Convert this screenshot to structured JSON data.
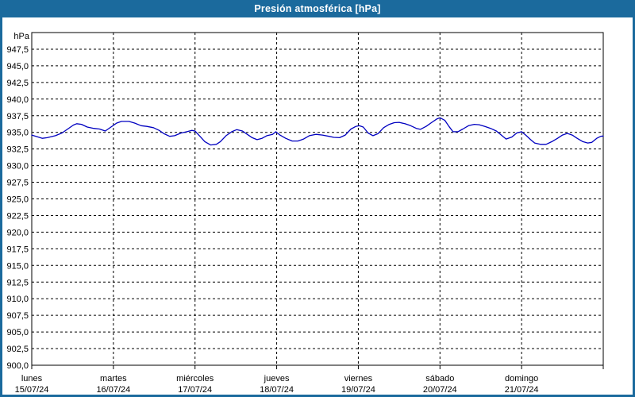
{
  "window": {
    "title": "Presión atmosférica [hPa]"
  },
  "colors": {
    "titlebar_bg": "#1b6a9d",
    "titlebar_text": "#ffffff",
    "frame": "#1b6a9d",
    "plot_bg": "#ffffff",
    "grid": "#000000",
    "axis": "#000000",
    "curve": "#0000c0",
    "label_text": "#000000"
  },
  "chart_data": {
    "type": "line",
    "title": "Presión atmosférica [hPa]",
    "grid": "dashed",
    "legend": "none",
    "y_axis": {
      "unit": "hPa",
      "min": 900.0,
      "max": 950.0,
      "grid_step": 2.5,
      "tick_values": [
        947.5,
        945.0,
        942.5,
        940.0,
        937.5,
        935.0,
        932.5,
        930.0,
        927.5,
        925.0,
        922.5,
        920.0,
        917.5,
        915.0,
        912.5,
        910.0,
        907.5,
        905.0,
        902.5,
        900.0
      ],
      "tick_labels": [
        "947,5",
        "945,0",
        "942,5",
        "940,0",
        "937,5",
        "935,0",
        "932,5",
        "930,0",
        "927,5",
        "925,0",
        "922,5",
        "920,0",
        "917,5",
        "915,0",
        "912,5",
        "910,0",
        "907,5",
        "905,0",
        "902,5",
        "900,0"
      ]
    },
    "x_axis": {
      "day_count": 7,
      "days": [
        {
          "name": "lunes",
          "date": "15/07/24"
        },
        {
          "name": "martes",
          "date": "16/07/24"
        },
        {
          "name": "miércoles",
          "date": "17/07/24"
        },
        {
          "name": "jueves",
          "date": "18/07/24"
        },
        {
          "name": "viernes",
          "date": "19/07/24"
        },
        {
          "name": "sábado",
          "date": "20/07/24"
        },
        {
          "name": "domingo",
          "date": "21/07/24"
        }
      ]
    },
    "series": [
      {
        "name": "presión atmosférica",
        "color": "#0000c0",
        "points": [
          [
            0.0,
            934.6
          ],
          [
            0.08,
            934.3
          ],
          [
            0.13,
            934.1
          ],
          [
            0.19,
            934.2
          ],
          [
            0.29,
            934.5
          ],
          [
            0.37,
            934.9
          ],
          [
            0.44,
            935.5
          ],
          [
            0.51,
            936.1
          ],
          [
            0.55,
            936.3
          ],
          [
            0.61,
            936.2
          ],
          [
            0.68,
            935.8
          ],
          [
            0.76,
            935.6
          ],
          [
            0.83,
            935.5
          ],
          [
            0.9,
            935.2
          ],
          [
            0.97,
            935.8
          ],
          [
            1.04,
            936.4
          ],
          [
            1.1,
            936.65
          ],
          [
            1.19,
            936.65
          ],
          [
            1.26,
            936.4
          ],
          [
            1.34,
            936.0
          ],
          [
            1.41,
            935.9
          ],
          [
            1.49,
            935.7
          ],
          [
            1.56,
            935.3
          ],
          [
            1.62,
            934.8
          ],
          [
            1.69,
            934.4
          ],
          [
            1.75,
            934.5
          ],
          [
            1.83,
            934.9
          ],
          [
            1.9,
            935.1
          ],
          [
            1.96,
            935.3
          ],
          [
            2.0,
            935.2
          ],
          [
            2.06,
            934.4
          ],
          [
            2.12,
            933.6
          ],
          [
            2.19,
            933.1
          ],
          [
            2.26,
            933.2
          ],
          [
            2.31,
            933.6
          ],
          [
            2.38,
            934.5
          ],
          [
            2.45,
            935.1
          ],
          [
            2.51,
            935.4
          ],
          [
            2.58,
            935.2
          ],
          [
            2.64,
            934.7
          ],
          [
            2.7,
            934.2
          ],
          [
            2.76,
            933.9
          ],
          [
            2.82,
            934.1
          ],
          [
            2.88,
            934.5
          ],
          [
            2.95,
            934.7
          ],
          [
            2.99,
            935.1
          ],
          [
            3.04,
            934.6
          ],
          [
            3.11,
            934.1
          ],
          [
            3.19,
            933.7
          ],
          [
            3.26,
            933.7
          ],
          [
            3.33,
            934.0
          ],
          [
            3.4,
            934.5
          ],
          [
            3.48,
            934.7
          ],
          [
            3.56,
            934.6
          ],
          [
            3.64,
            934.4
          ],
          [
            3.7,
            934.25
          ],
          [
            3.77,
            934.2
          ],
          [
            3.84,
            934.6
          ],
          [
            3.91,
            935.5
          ],
          [
            3.97,
            935.9
          ],
          [
            4.01,
            936.0
          ],
          [
            4.06,
            935.8
          ],
          [
            4.12,
            934.9
          ],
          [
            4.18,
            934.5
          ],
          [
            4.24,
            934.8
          ],
          [
            4.31,
            935.7
          ],
          [
            4.38,
            936.2
          ],
          [
            4.44,
            936.45
          ],
          [
            4.5,
            936.5
          ],
          [
            4.57,
            936.3
          ],
          [
            4.64,
            936.0
          ],
          [
            4.71,
            935.6
          ],
          [
            4.76,
            935.45
          ],
          [
            4.83,
            935.9
          ],
          [
            4.9,
            936.5
          ],
          [
            4.96,
            937.0
          ],
          [
            5.0,
            937.2
          ],
          [
            5.06,
            936.8
          ],
          [
            5.11,
            935.9
          ],
          [
            5.16,
            935.1
          ],
          [
            5.22,
            935.1
          ],
          [
            5.28,
            935.5
          ],
          [
            5.35,
            936.0
          ],
          [
            5.42,
            936.2
          ],
          [
            5.48,
            936.15
          ],
          [
            5.55,
            935.9
          ],
          [
            5.62,
            935.6
          ],
          [
            5.69,
            935.2
          ],
          [
            5.76,
            934.5
          ],
          [
            5.81,
            934.0
          ],
          [
            5.88,
            934.3
          ],
          [
            5.94,
            934.9
          ],
          [
            6.0,
            935.1
          ],
          [
            6.05,
            934.6
          ],
          [
            6.11,
            933.9
          ],
          [
            6.16,
            933.4
          ],
          [
            6.23,
            933.2
          ],
          [
            6.3,
            933.2
          ],
          [
            6.37,
            933.6
          ],
          [
            6.44,
            934.1
          ],
          [
            6.5,
            934.6
          ],
          [
            6.56,
            934.85
          ],
          [
            6.62,
            934.6
          ],
          [
            6.68,
            934.1
          ],
          [
            6.75,
            933.6
          ],
          [
            6.81,
            933.4
          ],
          [
            6.86,
            933.5
          ],
          [
            6.92,
            934.1
          ],
          [
            6.97,
            934.4
          ],
          [
            7.0,
            934.45
          ]
        ]
      }
    ]
  }
}
